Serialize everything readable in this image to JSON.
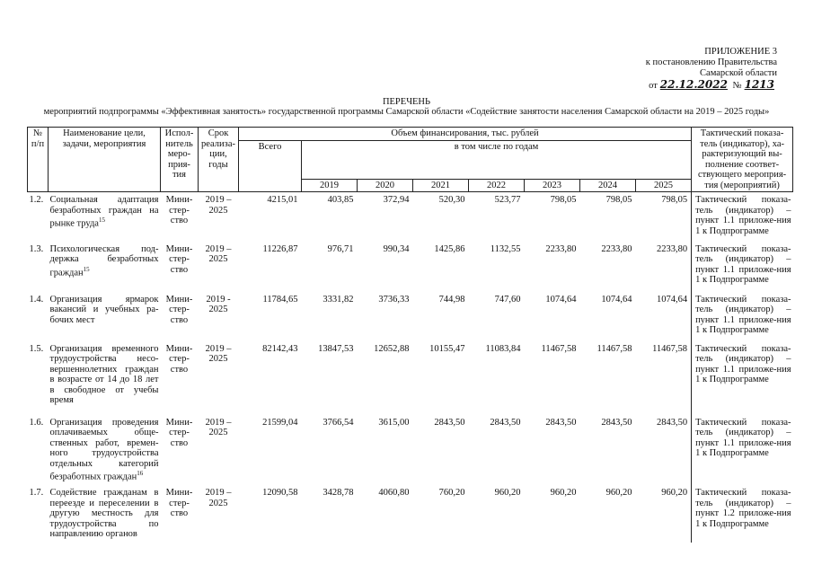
{
  "header": {
    "appendix": "ПРИЛОЖЕНИЕ 3",
    "line1": "к постановлению Правительства",
    "line2": "Самарской области",
    "date_prefix": "от",
    "date": "22.12.2022",
    "number_prefix": "№",
    "number": "1213"
  },
  "title": "ПЕРЕЧЕНЬ",
  "subtitle": "мероприятий подпрограммы «Эффективная занятость» государственной программы Самарской области «Содействие занятости населения Самарской области на 2019 – 2025 годы»",
  "table": {
    "columns": {
      "num": "№ п/п",
      "name": "Наименование цели, задачи, мероприятия",
      "executor": "Испол-нитель меро-прия-тия",
      "term": "Срок реализа-ции, годы",
      "funding": "Объем финансирования, тыс. рублей",
      "total": "Всего",
      "by_year": "в том числе по годам",
      "years": [
        "2019",
        "2020",
        "2021",
        "2022",
        "2023",
        "2024",
        "2025"
      ],
      "indicator": "Тактический показа-тель (индикатор), ха-рактеризующий вы-полнение соответ-ствующего мероприя-тия (мероприятий)"
    },
    "rows": [
      {
        "num": "1.2.",
        "name": "Социальная адаптация безработных граждан на рынке труда",
        "footnote": "15",
        "executor": "Мини-стер-ство",
        "term": "2019 – 2025",
        "total": "4215,01",
        "values": [
          "403,85",
          "372,94",
          "520,30",
          "523,77",
          "798,05",
          "798,05",
          "798,05"
        ],
        "indicator": "Тактический показа-тель (индикатор) – пункт 1.1 приложе-ния 1 к Подпрограмме"
      },
      {
        "num": "1.3.",
        "name": "Психологическая под-держка безработных граждан",
        "footnote": "15",
        "executor": "Мини-стер-ство",
        "term": "2019 – 2025",
        "total": "11226,87",
        "values": [
          "976,71",
          "990,34",
          "1425,86",
          "1132,55",
          "2233,80",
          "2233,80",
          "2233,80"
        ],
        "indicator": "Тактический показа-тель (индикатор) – пункт 1.1 приложе-ния 1 к Подпрограмме"
      },
      {
        "num": "1.4.",
        "name": "Организация ярмарок вакансий и учебных ра-бочих мест",
        "footnote": null,
        "executor": "Мини-стер-ство",
        "term": "2019 - 2025",
        "total": "11784,65",
        "values": [
          "3331,82",
          "3736,33",
          "744,98",
          "747,60",
          "1074,64",
          "1074,64",
          "1074,64"
        ],
        "indicator": "Тактический показа-тель (индикатор) – пункт 1.1 приложе-ния 1 к Подпрограмме"
      },
      {
        "num": "1.5.",
        "name": "Организация временного трудоустройства несо-вершеннолетних граждан в возрасте от 14 до 18 лет в свободное от учебы время",
        "footnote": null,
        "executor": "Мини-стер-ство",
        "term": "2019 – 2025",
        "total": "82142,43",
        "values": [
          "13847,53",
          "12652,88",
          "10155,47",
          "11083,84",
          "11467,58",
          "11467,58",
          "11467,58"
        ],
        "indicator": "Тактический показа-тель (индикатор) – пункт 1.1 приложе-ния 1 к Подпрограмме"
      },
      {
        "num": "1.6.",
        "name": "Организация проведения оплачиваемых обще-ственных работ, времен-ного трудоустройства отдельных категорий безработных граждан",
        "footnote": "16",
        "executor": "Мини-стер-ство",
        "term": "2019 – 2025",
        "total": "21599,04",
        "values": [
          "3766,54",
          "3615,00",
          "2843,50",
          "2843,50",
          "2843,50",
          "2843,50",
          "2843,50"
        ],
        "indicator": "Тактический показа-тель (индикатор) – пункт 1.1 приложе-ния 1 к Подпрограмме"
      },
      {
        "num": "1.7.",
        "name": "Содействие гражданам в переезде и переселении в другую местность для трудоустройства по направлению органов",
        "footnote": null,
        "executor": "Мини-стер-ство",
        "term": "2019 – 2025",
        "total": "12090,58",
        "values": [
          "3428,78",
          "4060,80",
          "760,20",
          "960,20",
          "960,20",
          "960,20",
          "960,20"
        ],
        "indicator": "Тактический показа-тель (индикатор) – пункт 1.2 приложе-ния 1 к Подпрограмме"
      }
    ]
  }
}
